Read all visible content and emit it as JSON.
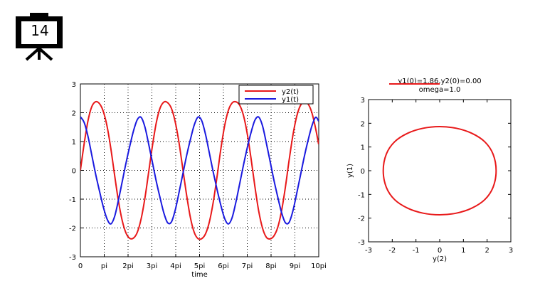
{
  "slide": {
    "number": "14",
    "icon": "presentation-board-icon"
  },
  "chart_data": [
    {
      "type": "line",
      "xlabel": "time",
      "ylabel": "",
      "xlim": [
        0,
        31.4159
      ],
      "ylim": [
        -3,
        3
      ],
      "grid": true,
      "legend_position": "top-right",
      "x_ticks": [
        {
          "value": 0,
          "label": "0"
        },
        {
          "value": 3.14159,
          "label": "pi"
        },
        {
          "value": 6.28319,
          "label": "2pi"
        },
        {
          "value": 9.42478,
          "label": "3pi"
        },
        {
          "value": 12.56637,
          "label": "4pi"
        },
        {
          "value": 15.70796,
          "label": "5pi"
        },
        {
          "value": 18.84956,
          "label": "6pi"
        },
        {
          "value": 21.99115,
          "label": "7pi"
        },
        {
          "value": 25.13274,
          "label": "8pi"
        },
        {
          "value": 28.27433,
          "label": "9pi"
        },
        {
          "value": 31.41593,
          "label": "10pi"
        }
      ],
      "y_ticks": [
        3,
        2,
        1,
        0,
        -1,
        -2,
        -3
      ],
      "series": [
        {
          "name": "y2(t)",
          "color": "#e8191a",
          "x": [
            0,
            0.5,
            1.0,
            1.5,
            2.0,
            2.5,
            3.0,
            3.5,
            4.0,
            4.5,
            5.0,
            5.5,
            6.0,
            6.5,
            7.0,
            7.5,
            8.0,
            8.5,
            9.0,
            9.5,
            10.0,
            10.5,
            11.0,
            11.5,
            12.0,
            12.5,
            13.0,
            13.5,
            14.0,
            14.5,
            15.0,
            15.5,
            16.0,
            16.5,
            17.0,
            17.5,
            18.0,
            18.5,
            19.0,
            19.5,
            20.0,
            20.5,
            21.0,
            21.5,
            22.0,
            22.5,
            23.0,
            23.5,
            24.0,
            24.5,
            25.0,
            25.5,
            26.0,
            26.5,
            27.0,
            27.5,
            28.0,
            28.5,
            29.0,
            29.5,
            30.0,
            30.5,
            31.0,
            31.4
          ],
          "values": [
            0.0,
            0.93,
            1.72,
            2.21,
            2.38,
            2.32,
            2.06,
            1.55,
            0.78,
            -0.15,
            -1.04,
            -1.73,
            -2.17,
            -2.36,
            -2.35,
            -2.15,
            -1.69,
            -0.97,
            -0.06,
            0.86,
            1.65,
            2.16,
            2.37,
            2.35,
            2.15,
            1.68,
            0.96,
            0.05,
            -0.86,
            -1.64,
            -2.15,
            -2.37,
            -2.37,
            -2.2,
            -1.79,
            -1.12,
            -0.24,
            0.72,
            1.53,
            2.08,
            2.34,
            2.38,
            2.26,
            1.9,
            1.26,
            0.4,
            -0.56,
            -1.41,
            -2.0,
            -2.32,
            -2.38,
            -2.28,
            -1.99,
            -1.43,
            -0.62,
            0.33,
            1.2,
            1.86,
            2.25,
            2.38,
            2.31,
            2.01,
            1.46,
            0.91
          ]
        },
        {
          "name": "y1(t)",
          "color": "#1a1adf",
          "x": [
            0,
            0.5,
            1.0,
            1.5,
            2.0,
            2.5,
            3.0,
            3.5,
            4.0,
            4.5,
            5.0,
            5.5,
            6.0,
            6.5,
            7.0,
            7.5,
            8.0,
            8.5,
            9.0,
            9.5,
            10.0,
            10.5,
            11.0,
            11.5,
            12.0,
            12.5,
            13.0,
            13.5,
            14.0,
            14.5,
            15.0,
            15.5,
            16.0,
            16.5,
            17.0,
            17.5,
            18.0,
            18.5,
            19.0,
            19.5,
            20.0,
            20.5,
            21.0,
            21.5,
            22.0,
            22.5,
            23.0,
            23.5,
            24.0,
            24.5,
            25.0,
            25.5,
            26.0,
            26.5,
            27.0,
            27.5,
            28.0,
            28.5,
            29.0,
            29.5,
            30.0,
            30.5,
            31.0,
            31.4
          ],
          "values": [
            1.86,
            1.66,
            1.18,
            0.53,
            -0.12,
            -0.7,
            -1.25,
            -1.68,
            -1.86,
            -1.61,
            -1.05,
            -0.41,
            0.24,
            0.83,
            1.37,
            1.76,
            1.84,
            1.51,
            0.91,
            0.27,
            -0.38,
            -0.95,
            -1.48,
            -1.82,
            -1.79,
            -1.38,
            -0.77,
            -0.13,
            0.51,
            1.07,
            1.57,
            1.85,
            1.72,
            1.24,
            0.6,
            -0.05,
            -0.65,
            -1.2,
            -1.66,
            -1.86,
            -1.64,
            -1.1,
            -0.46,
            0.19,
            0.79,
            1.32,
            1.74,
            1.85,
            1.55,
            0.96,
            0.32,
            -0.33,
            -0.91,
            -1.45,
            -1.81,
            -1.81,
            -1.42,
            -0.82,
            -0.18,
            0.46,
            1.03,
            1.53,
            1.84,
            1.71
          ]
        }
      ]
    },
    {
      "type": "line",
      "title": "y1(0)=1.86,y2(0)=0.00",
      "subtitle": "omega=1.0",
      "xlabel": "y(2)",
      "ylabel": "y(1)",
      "xlim": [
        -3,
        3
      ],
      "ylim": [
        -3,
        3
      ],
      "grid": false,
      "x_ticks": [
        -3,
        -2,
        -1,
        0,
        1,
        2,
        3
      ],
      "y_ticks": [
        3,
        2,
        1,
        0,
        -1,
        -2,
        -3
      ],
      "series": [
        {
          "name": "",
          "color": "#e8191a",
          "x": [
            0.0,
            0.7,
            1.35,
            1.9,
            2.25,
            2.38,
            2.25,
            1.9,
            1.35,
            0.7,
            0.0,
            -0.7,
            -1.35,
            -1.9,
            -2.25,
            -2.38,
            -2.25,
            -1.9,
            -1.35,
            -0.7,
            0.0
          ],
          "values": [
            1.86,
            1.79,
            1.58,
            1.22,
            0.7,
            0.0,
            -0.7,
            -1.22,
            -1.58,
            -1.79,
            -1.86,
            -1.79,
            -1.58,
            -1.22,
            -0.7,
            0.0,
            0.7,
            1.22,
            1.58,
            1.79,
            1.86
          ]
        }
      ]
    }
  ]
}
